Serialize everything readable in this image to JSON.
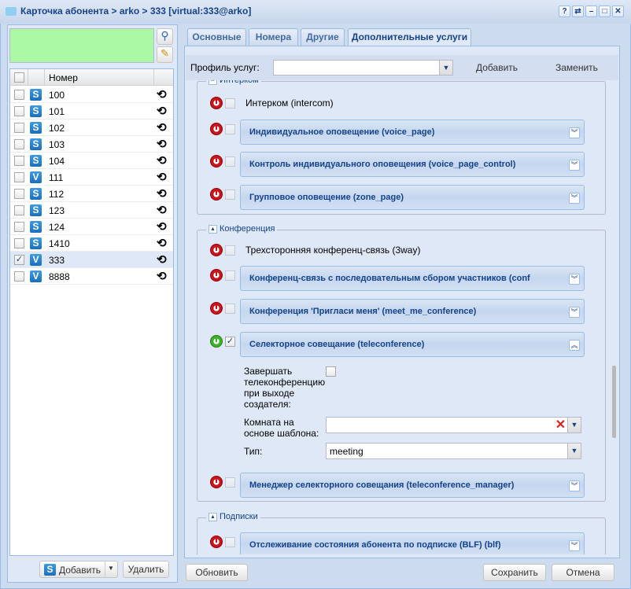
{
  "window": {
    "title": "Карточка абонента > arko > 333 [virtual:333@arko]",
    "buttons": [
      "?",
      "⇄",
      "–",
      "□",
      "✕"
    ]
  },
  "left": {
    "header": {
      "number": "Номер"
    },
    "rows": [
      {
        "number": "100",
        "type": "S",
        "checked": false
      },
      {
        "number": "101",
        "type": "S",
        "checked": false
      },
      {
        "number": "102",
        "type": "S",
        "checked": false
      },
      {
        "number": "103",
        "type": "S",
        "checked": false
      },
      {
        "number": "104",
        "type": "S",
        "checked": false
      },
      {
        "number": "111",
        "type": "V",
        "checked": false
      },
      {
        "number": "112",
        "type": "S",
        "checked": false
      },
      {
        "number": "123",
        "type": "S",
        "checked": false
      },
      {
        "number": "124",
        "type": "S",
        "checked": false
      },
      {
        "number": "1410",
        "type": "S",
        "checked": false
      },
      {
        "number": "333",
        "type": "V",
        "checked": true
      },
      {
        "number": "8888",
        "type": "V",
        "checked": false
      }
    ],
    "add_label": "Добавить",
    "delete_label": "Удалить"
  },
  "tabs": [
    {
      "label": "Основные"
    },
    {
      "label": "Номера"
    },
    {
      "label": "Другие"
    },
    {
      "label": "Дополнительные услуги",
      "active": true
    }
  ],
  "profile": {
    "label": "Профиль услуг:",
    "value": "",
    "add": "Добавить",
    "replace": "Заменить"
  },
  "intercom": {
    "legend": "Интерком",
    "plain": "Интерком (intercom)",
    "panels": [
      "Индивидуальное оповещение (voice_page)",
      "Контроль индивидуального оповещения (voice_page_control)",
      "Групповое оповещение (zone_page)"
    ]
  },
  "conference": {
    "legend": "Конференция",
    "plain": "Трехсторонняя конференц-связь (3way)",
    "panels": [
      "Конференц-связь с последовательным сбором участников (conf",
      "Конференция 'Пригласи меня' (meet_me_conference)"
    ],
    "expanded": {
      "title": "Селекторное совещание (teleconference)",
      "enabled": true,
      "end_label": "Завершать телеконференцию при выходе создателя:",
      "end_checked": false,
      "room_label": "Комната на основе шаблона:",
      "room_value": "",
      "type_label": "Тип:",
      "type_value": "meeting"
    },
    "manager": "Менеджер селекторного совещания (teleconference_manager)"
  },
  "subscriptions": {
    "legend": "Подписки",
    "panels": [
      "Отслеживание состояния абонента по подписке (BLF) (blf)"
    ]
  },
  "footer": {
    "refresh": "Обновить",
    "save": "Сохранить",
    "cancel": "Отмена"
  },
  "colors": {
    "accent": "#15428b",
    "selection": "#dfe8f6",
    "filter_bg": "#aaf8a4"
  }
}
